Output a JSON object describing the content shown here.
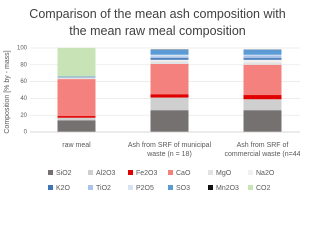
{
  "chart_data": {
    "type": "stacked_bar",
    "title": "Comparison of the mean ash composition with the mean raw meal composition",
    "y_label": "Composition [% by - mass]",
    "categories": [
      "raw meal",
      "Ash from SRF of municipal waste (n = 18)",
      "Ash from SRF of commercial waste (n=44"
    ],
    "ylim": [
      0,
      100
    ],
    "yticks": [
      0,
      20,
      40,
      60,
      80,
      100
    ],
    "grid": true,
    "series": [
      {
        "name": "SiO2",
        "color": "#767171",
        "values": [
          14,
          26,
          26
        ]
      },
      {
        "name": "Al2O3",
        "color": "#cfcfcf",
        "values": [
          3,
          15,
          13
        ]
      },
      {
        "name": "Fe2O3",
        "color": "#e00000",
        "values": [
          2,
          4,
          5
        ]
      },
      {
        "name": "CaO",
        "color": "#f4817d",
        "values": [
          44,
          36,
          36
        ]
      },
      {
        "name": "MgO",
        "color": "#e2e2e2",
        "values": [
          1.5,
          3,
          3
        ]
      },
      {
        "name": "Na2O",
        "color": "#f0f0f0",
        "values": [
          0.3,
          2,
          3
        ]
      },
      {
        "name": "K2O",
        "color": "#3f74b5",
        "values": [
          0.5,
          2,
          2
        ]
      },
      {
        "name": "TiO2",
        "color": "#a9c4e8",
        "values": [
          0.2,
          2,
          3
        ]
      },
      {
        "name": "P2O5",
        "color": "#d6e3f3",
        "values": [
          0.1,
          2,
          1
        ]
      },
      {
        "name": "SO3",
        "color": "#5b9bd5",
        "values": [
          0.5,
          6,
          6
        ]
      },
      {
        "name": "Mn2O3",
        "color": "#111111",
        "values": [
          0.1,
          0.3,
          0.2
        ]
      },
      {
        "name": "CO2",
        "color": "#c8e3b6",
        "values": [
          34,
          0,
          0
        ]
      }
    ]
  }
}
